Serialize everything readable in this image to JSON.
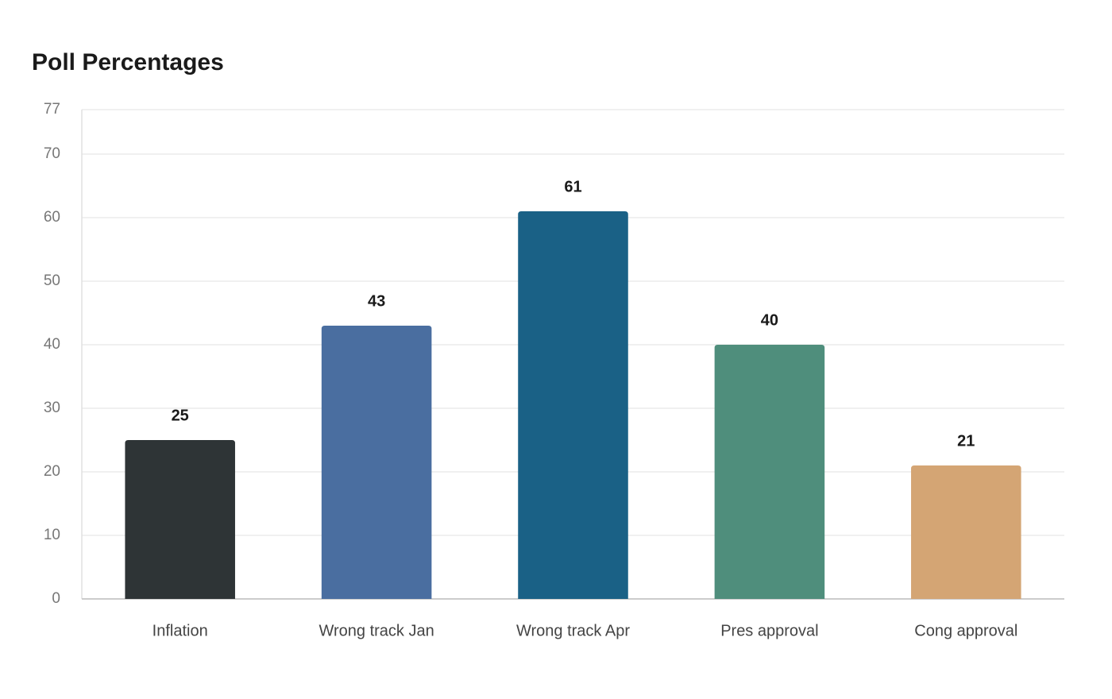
{
  "chart_data": {
    "type": "bar",
    "title": "Poll Percentages",
    "categories": [
      "Inflation",
      "Wrong track Jan",
      "Wrong track Apr",
      "Pres approval",
      "Cong approval"
    ],
    "values": [
      25,
      43,
      61,
      40,
      21
    ],
    "colors": [
      "#2e3436",
      "#4a6ea0",
      "#1a6186",
      "#4f8e7c",
      "#d4a574"
    ],
    "ylim": [
      0,
      77
    ],
    "yticks": [
      0,
      10,
      20,
      30,
      40,
      50,
      60,
      70,
      77
    ],
    "grid": true
  }
}
